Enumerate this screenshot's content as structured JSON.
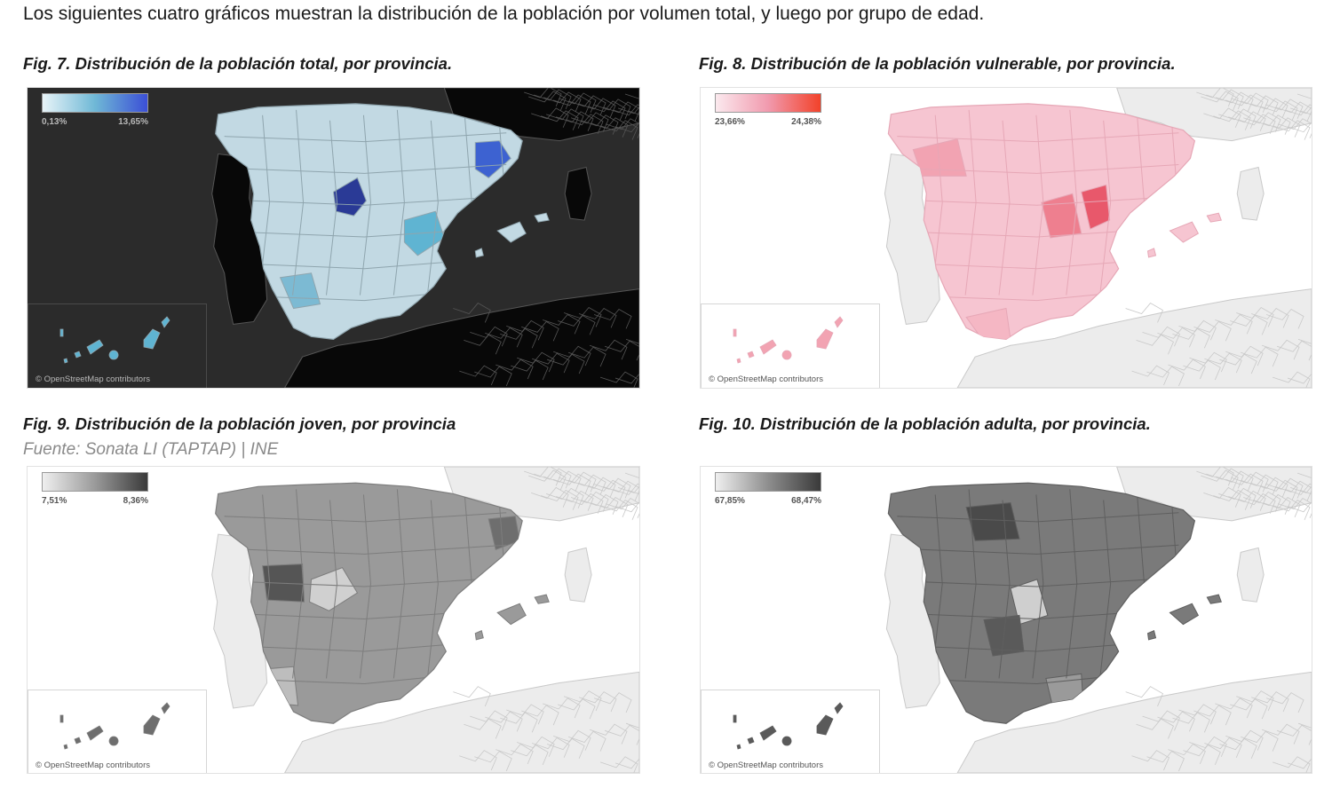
{
  "intro_text": "Los siguientes cuatro gráficos muestran la distribución de la población por volumen total, y luego por grupo de edad.",
  "source_text": "Fuente: Sonata LI (TAPTAP) | INE",
  "maps": [
    {
      "title": "Fig. 7. Distribución de la población total, por provincia.",
      "legend_min": "0,13%",
      "legend_max": "13,65%",
      "credit": "© OpenStreetMap contributors",
      "colors": {
        "background": "#2b2b2b",
        "neighbors": "#080808",
        "borders": "#555555",
        "low": "#e8f4f8",
        "mid": "#6fb8d6",
        "high": "#3b4fd6",
        "base": "#c2d9e3",
        "province_stroke": "#8fa5ae",
        "highlights": [
          "#2a3a96",
          "#3d62d1",
          "#5fb4d2",
          "#7cbad3"
        ],
        "text": "#b8b8b8",
        "inset_border": "#4a4a4a"
      }
    },
    {
      "title": "Fig. 8. Distribución de la población vulnerable, por provincia.",
      "legend_min": "23,66%",
      "legend_max": "24,38%",
      "credit": "© OpenStreetMap contributors",
      "colors": {
        "background": "#ffffff",
        "neighbors": "#ececec",
        "borders": "#c9c9c9",
        "low": "#fbe9ee",
        "mid": "#f19aae",
        "high": "#f2422a",
        "base": "#f6c5d1",
        "province_stroke": "#e6a7b6",
        "highlights": [
          "#e8586b",
          "#ee7f8f",
          "#f2a3b2",
          "#f5b7c4"
        ],
        "text": "#555555",
        "inset_border": "#d6d6d6"
      }
    },
    {
      "title": "Fig. 9. Distribución de la población joven, por provincia",
      "legend_min": "7,51%",
      "legend_max": "8,36%",
      "credit": "© OpenStreetMap contributors",
      "colors": {
        "background": "#ffffff",
        "neighbors": "#ececec",
        "borders": "#c9c9c9",
        "low": "#efefef",
        "mid": "#9a9a9a",
        "high": "#3a3a3a",
        "base": "#9a9a9a",
        "province_stroke": "#7d7d7d",
        "highlights": [
          "#555555",
          "#d0d0d0",
          "#6e6e6e",
          "#bdbdbd"
        ],
        "text": "#555555",
        "inset_border": "#d6d6d6"
      }
    },
    {
      "title": "Fig. 10. Distribución de la población adulta, por provincia.",
      "legend_min": "67,85%",
      "legend_max": "68,47%",
      "credit": "© OpenStreetMap contributors",
      "colors": {
        "background": "#ffffff",
        "neighbors": "#ececec",
        "borders": "#c9c9c9",
        "low": "#efefef",
        "mid": "#8e8e8e",
        "high": "#3a3a3a",
        "base": "#7a7a7a",
        "province_stroke": "#5f5f5f",
        "highlights": [
          "#4a4a4a",
          "#cfcfcf",
          "#5a5a5a",
          "#9a9a9a"
        ],
        "text": "#555555",
        "inset_border": "#d6d6d6"
      }
    }
  ]
}
